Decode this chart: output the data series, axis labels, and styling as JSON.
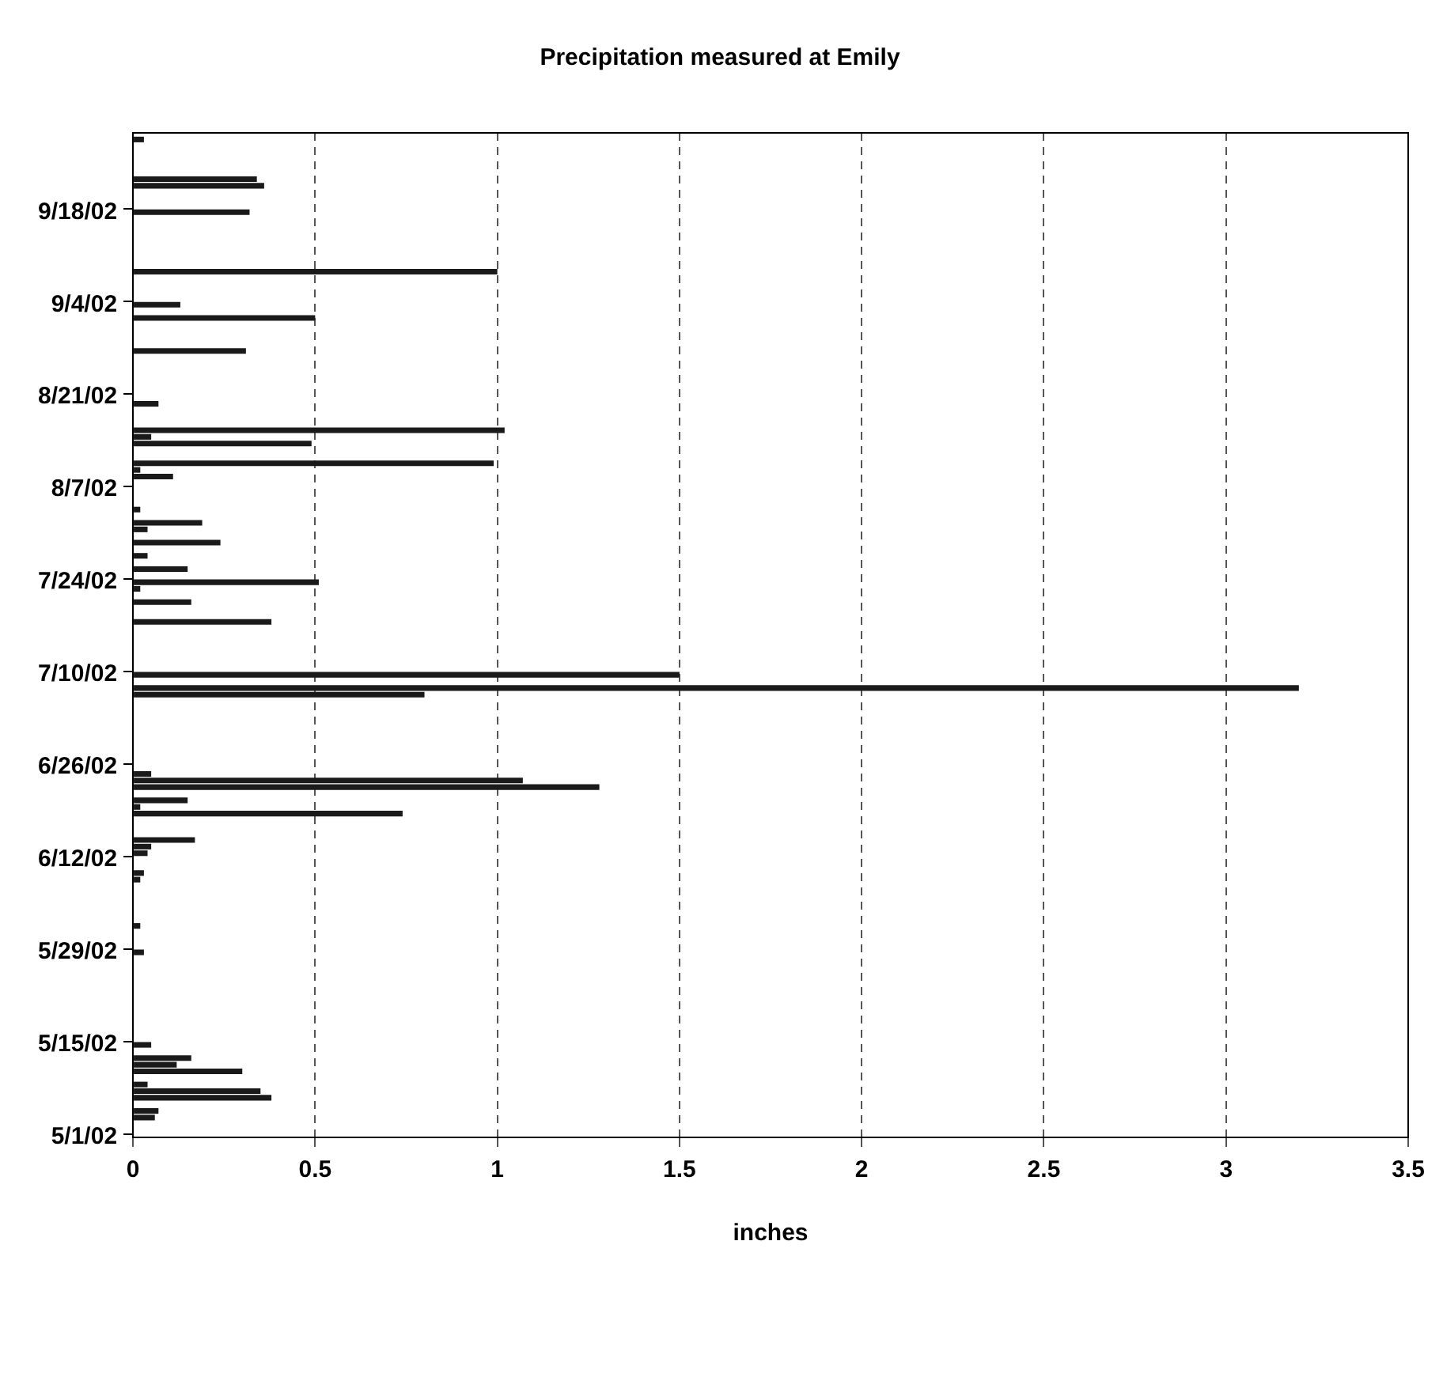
{
  "chart_data": {
    "type": "bar",
    "orientation": "horizontal",
    "title": "Precipitation measured at Emily",
    "xlabel": "inches",
    "categories": [
      null,
      null,
      null,
      null,
      null,
      null,
      null,
      null,
      null,
      null,
      null,
      null,
      "9/18/02",
      null,
      null,
      null,
      null,
      null,
      null,
      null,
      null,
      null,
      null,
      null,
      null,
      null,
      "9/4/02",
      null,
      null,
      null,
      null,
      null,
      null,
      null,
      null,
      null,
      null,
      null,
      null,
      null,
      "8/21/02",
      null,
      null,
      null,
      null,
      null,
      null,
      null,
      null,
      null,
      null,
      null,
      null,
      null,
      "8/7/02",
      null,
      null,
      null,
      null,
      null,
      null,
      null,
      null,
      null,
      null,
      null,
      null,
      null,
      "7/24/02",
      null,
      null,
      null,
      null,
      null,
      null,
      null,
      null,
      null,
      null,
      null,
      null,
      null,
      "7/10/02",
      null,
      null,
      null,
      null,
      null,
      null,
      null,
      null,
      null,
      null,
      null,
      null,
      null,
      "6/26/02",
      null,
      null,
      null,
      null,
      null,
      null,
      null,
      null,
      null,
      null,
      null,
      null,
      null,
      "6/12/02",
      null,
      null,
      null,
      null,
      null,
      null,
      null,
      null,
      null,
      null,
      null,
      null,
      null,
      "5/29/02",
      null,
      null,
      null,
      null,
      null,
      null,
      null,
      null,
      null,
      null,
      null,
      null,
      null,
      "5/15/02",
      null,
      null,
      null,
      null,
      null,
      null,
      null,
      null,
      null,
      null,
      null,
      null,
      null,
      "5/1/02"
    ],
    "values": [
      null,
      0.03,
      null,
      null,
      null,
      null,
      null,
      0.34,
      0.36,
      null,
      null,
      null,
      0.32,
      null,
      null,
      null,
      null,
      null,
      null,
      null,
      null,
      1.0,
      null,
      null,
      null,
      null,
      0.13,
      null,
      0.5,
      null,
      null,
      null,
      null,
      0.31,
      null,
      null,
      null,
      null,
      null,
      null,
      null,
      0.07,
      null,
      null,
      null,
      1.02,
      0.05,
      0.49,
      null,
      null,
      0.99,
      0.02,
      0.11,
      null,
      null,
      null,
      null,
      0.02,
      null,
      0.19,
      0.04,
      null,
      0.24,
      null,
      0.04,
      null,
      0.15,
      null,
      0.51,
      0.02,
      null,
      0.16,
      null,
      null,
      0.38,
      null,
      null,
      null,
      null,
      null,
      null,
      null,
      1.5,
      null,
      3.2,
      0.8,
      null,
      null,
      null,
      null,
      null,
      null,
      null,
      null,
      null,
      null,
      null,
      0.05,
      1.07,
      1.28,
      null,
      0.15,
      0.02,
      0.74,
      null,
      null,
      null,
      0.17,
      0.05,
      0.04,
      null,
      null,
      0.03,
      0.02,
      null,
      null,
      null,
      null,
      null,
      null,
      0.02,
      null,
      null,
      null,
      0.03,
      null,
      null,
      null,
      null,
      null,
      null,
      null,
      null,
      null,
      null,
      null,
      null,
      null,
      0.05,
      null,
      0.16,
      0.12,
      0.3,
      null,
      0.04,
      0.35,
      0.38,
      null,
      0.07,
      0.06,
      null,
      null,
      null
    ],
    "color": "#1a1a1a",
    "xlim": [
      0,
      3.5
    ],
    "xticks": [
      0,
      0.5,
      1,
      1.5,
      2,
      2.5,
      3,
      3.5
    ],
    "grid": "x"
  }
}
